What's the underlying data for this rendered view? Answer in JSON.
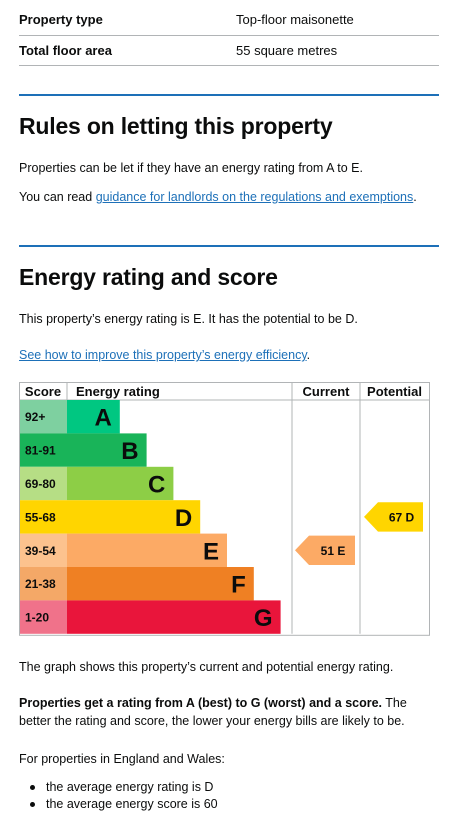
{
  "summary": {
    "rows": [
      {
        "key": "Property type",
        "value": "Top-floor maisonette"
      },
      {
        "key": "Total floor area",
        "value": "55 square metres"
      }
    ]
  },
  "letting": {
    "heading": "Rules on letting this property",
    "para1": "Properties can be let if they have an energy rating from A to E.",
    "para2_prefix": "You can read ",
    "para2_link": "guidance for landlords on the regulations and exemptions",
    "para2_suffix": "."
  },
  "energy": {
    "heading": "Energy rating and score",
    "para1": "This property’s energy rating is E. It has the potential to be D.",
    "improve_link": "See how to improve this property’s energy efficiency",
    "improve_suffix": ".",
    "graph_caption": "The graph shows this property’s current and potential energy rating.",
    "explain_bold": "Properties get a rating from A (best) to G (worst) and a score.",
    "explain_rest": " The better the rating and score, the lower your energy bills are likely to be.",
    "regions_intro": "For properties in England and Wales:",
    "bullets": [
      "the average energy rating is D",
      "the average energy score is 60"
    ]
  },
  "chart_data": {
    "type": "bar",
    "headers": {
      "score": "Score",
      "rating": "Energy rating",
      "current": "Current",
      "potential": "Potential"
    },
    "bands": [
      {
        "score": "92+",
        "letter": "A",
        "color": "#00c781",
        "score_bg": "#7ed0a0",
        "level": 1
      },
      {
        "score": "81-91",
        "letter": "B",
        "color": "#19b459",
        "score_bg": "#19b459",
        "level": 2
      },
      {
        "score": "69-80",
        "letter": "C",
        "color": "#8dce46",
        "score_bg": "#b6de85",
        "level": 3
      },
      {
        "score": "55-68",
        "letter": "D",
        "color": "#ffd500",
        "score_bg": "#ffd500",
        "level": 4
      },
      {
        "score": "39-54",
        "letter": "E",
        "color": "#fcaa65",
        "score_bg": "#fcc28e",
        "level": 5
      },
      {
        "score": "21-38",
        "letter": "F",
        "color": "#ef8023",
        "score_bg": "#f4a867",
        "level": 6
      },
      {
        "score": "1-20",
        "letter": "G",
        "color": "#e9153b",
        "score_bg": "#f0728a",
        "level": 7
      }
    ],
    "current": {
      "score": 51,
      "letter": "E",
      "label": "51 E",
      "color": "#fcaa65"
    },
    "potential": {
      "score": 67,
      "letter": "D",
      "label": "67 D",
      "color": "#ffd500"
    }
  }
}
